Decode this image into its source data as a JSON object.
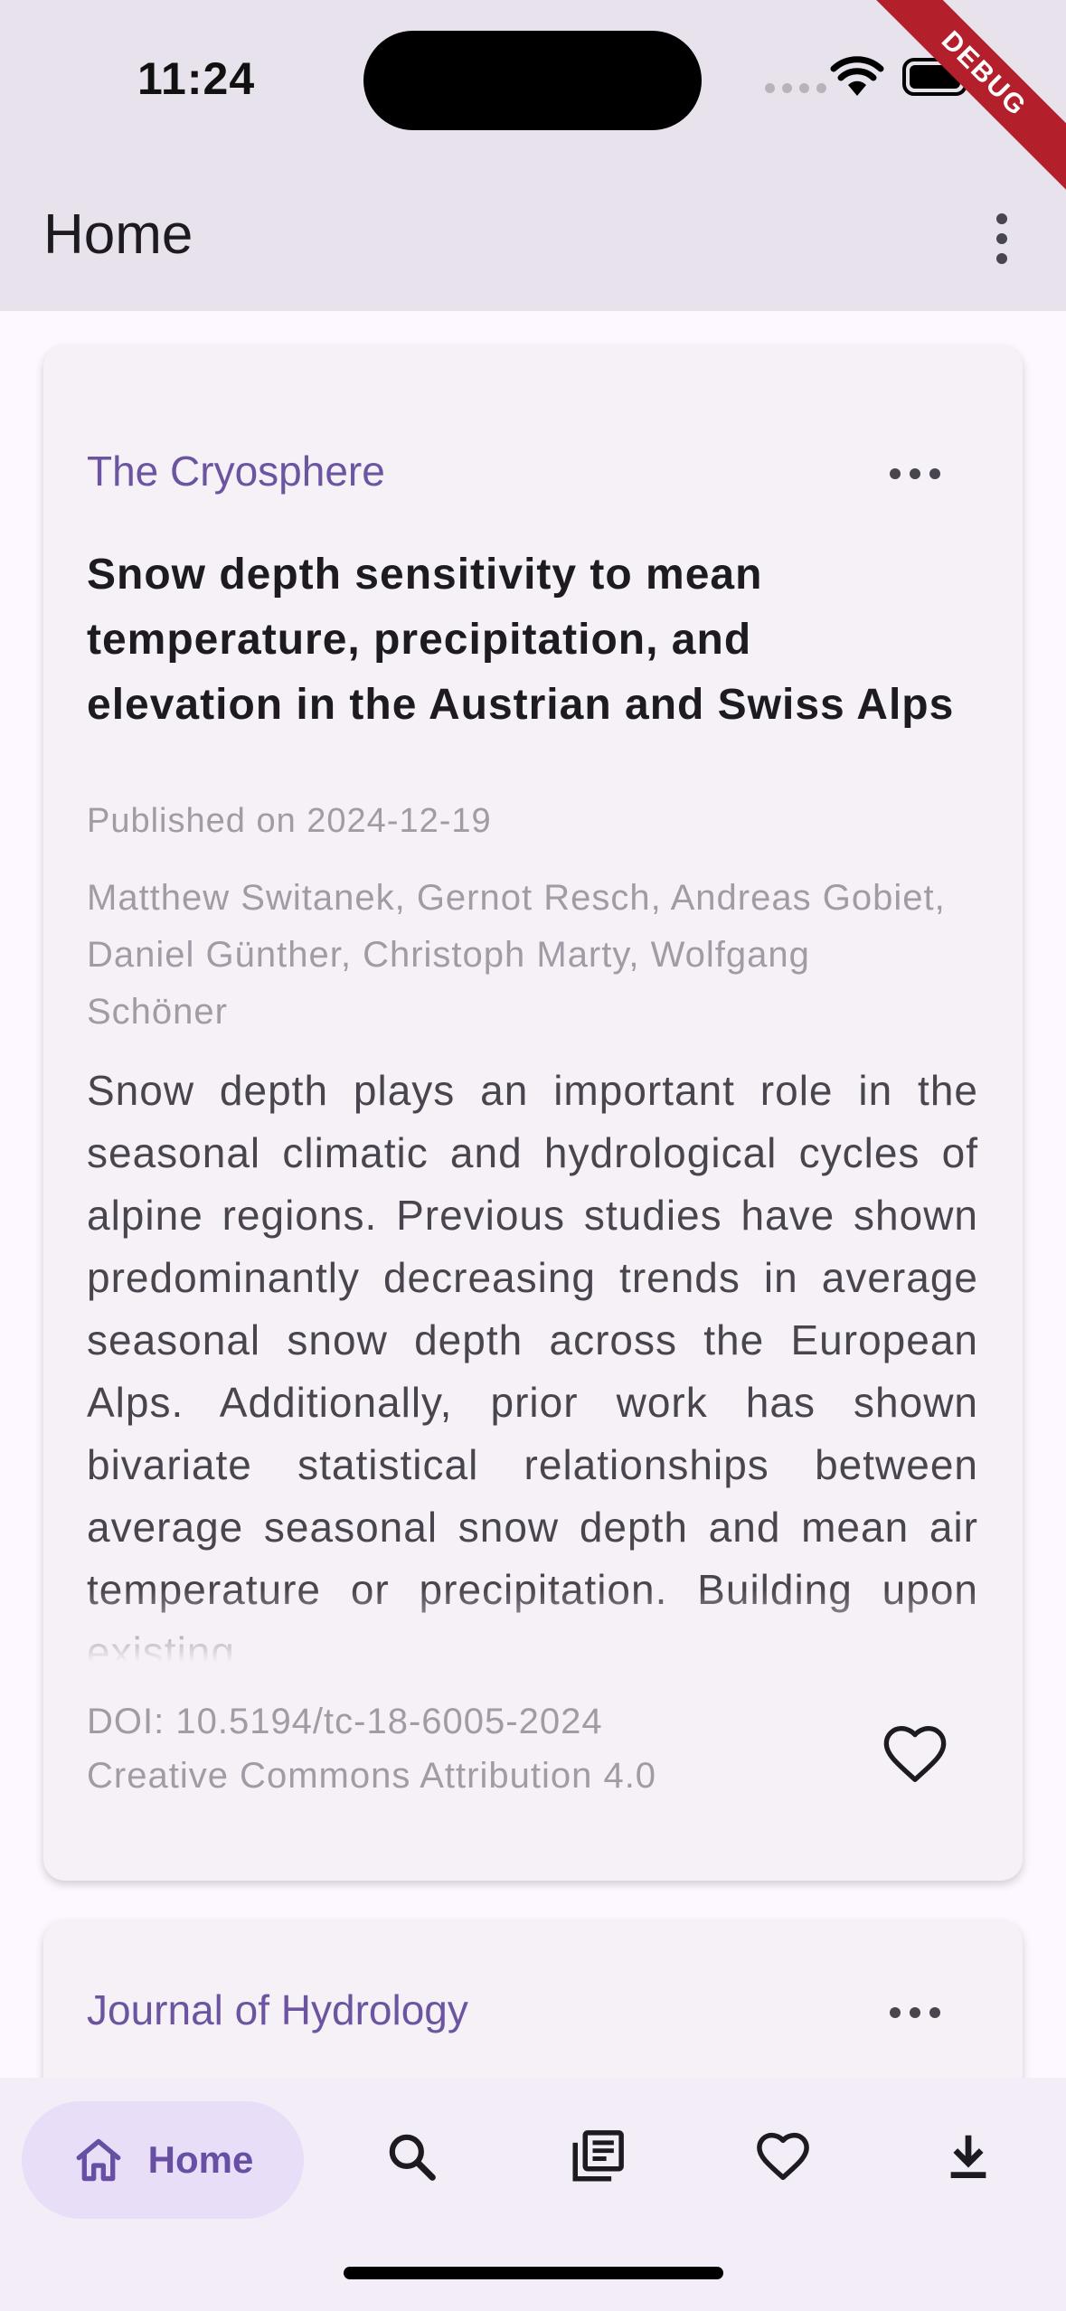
{
  "status_bar": {
    "time": "11:24",
    "debug_banner": "DEBUG"
  },
  "app_bar": {
    "title": "Home",
    "overflow_icon": "more-vert-icon"
  },
  "articles": [
    {
      "journal": "The Cryosphere",
      "title": "Snow depth sensitivity to mean temperature, precipitation, and elevation in the Austrian and Swiss Alps",
      "published": "Published on 2024-12-19",
      "authors": "Matthew Switanek, Gernot Resch, Andreas Gobiet, Daniel Günther, Christoph Marty, Wolfgang Schöner",
      "abstract": "Snow depth plays an important role in the seasonal climatic and hydrological cycles of alpine regions. Previous studies have shown predominantly decreasing trends in average seasonal snow depth across the European Alps. Additionally, prior work has shown bivariate statistical relationships between average seasonal snow depth and mean air temperature or precipitation. Building upon existing",
      "doi": "DOI: 10.5194/tc-18-6005-2024",
      "license": "Creative Commons Attribution 4.0",
      "favorite_icon": "heart-outline-icon"
    },
    {
      "journal": "Journal of Hydrology"
    }
  ],
  "bottom_nav": {
    "active": "Home",
    "items": [
      {
        "label": "Home",
        "icon": "home-icon"
      },
      {
        "icon": "search-icon"
      },
      {
        "icon": "library-icon"
      },
      {
        "icon": "favorite-icon"
      },
      {
        "icon": "download-icon"
      }
    ]
  },
  "colors": {
    "accent": "#6750a4",
    "journal_text": "#6b55a0",
    "app_bar_bg": "#e8e2ec",
    "nav_active_bg": "#e8def8"
  }
}
